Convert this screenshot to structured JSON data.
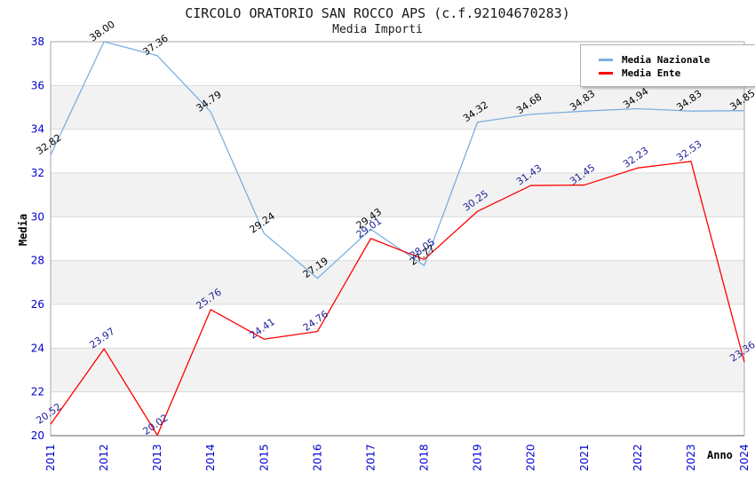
{
  "chart_data": {
    "type": "line",
    "title": "CIRCOLO ORATORIO SAN ROCCO APS (c.f.92104670283)",
    "subtitle": "Media Importi",
    "xlabel": "Anno",
    "ylabel": "Media",
    "x": [
      2011,
      2012,
      2013,
      2014,
      2015,
      2016,
      2017,
      2018,
      2019,
      2020,
      2021,
      2022,
      2023,
      2024
    ],
    "series": [
      {
        "name": "Media Nazionale",
        "color": "#7CAFE2",
        "label_color": "#000000",
        "values": [
          32.82,
          38.0,
          37.36,
          34.79,
          29.24,
          27.19,
          29.43,
          27.77,
          34.32,
          34.68,
          34.83,
          34.94,
          34.83,
          34.85
        ]
      },
      {
        "name": "Media Ente",
        "color": "#FF0000",
        "label_color": "#22229A",
        "values": [
          20.52,
          23.97,
          20.02,
          25.76,
          24.41,
          24.76,
          29.01,
          28.05,
          30.25,
          31.43,
          31.45,
          32.23,
          32.53,
          23.36
        ]
      }
    ],
    "ylim": [
      20,
      38
    ],
    "ytick_step": 2,
    "y_ticks": [
      20,
      22,
      24,
      26,
      28,
      30,
      32,
      34,
      36,
      38
    ],
    "grid": true,
    "shaded_bands": [
      [
        22,
        24
      ],
      [
        26,
        28
      ],
      [
        30,
        32
      ],
      [
        34,
        36
      ]
    ],
    "legend_position": "top-right",
    "style": {
      "tick_color": "#0000CD",
      "band_color": "#F2F2F2",
      "grid_color": "#DADADA",
      "border_color": "#A8A8A8",
      "axis_color": "#606060",
      "label_rotation_deg": -35
    }
  }
}
